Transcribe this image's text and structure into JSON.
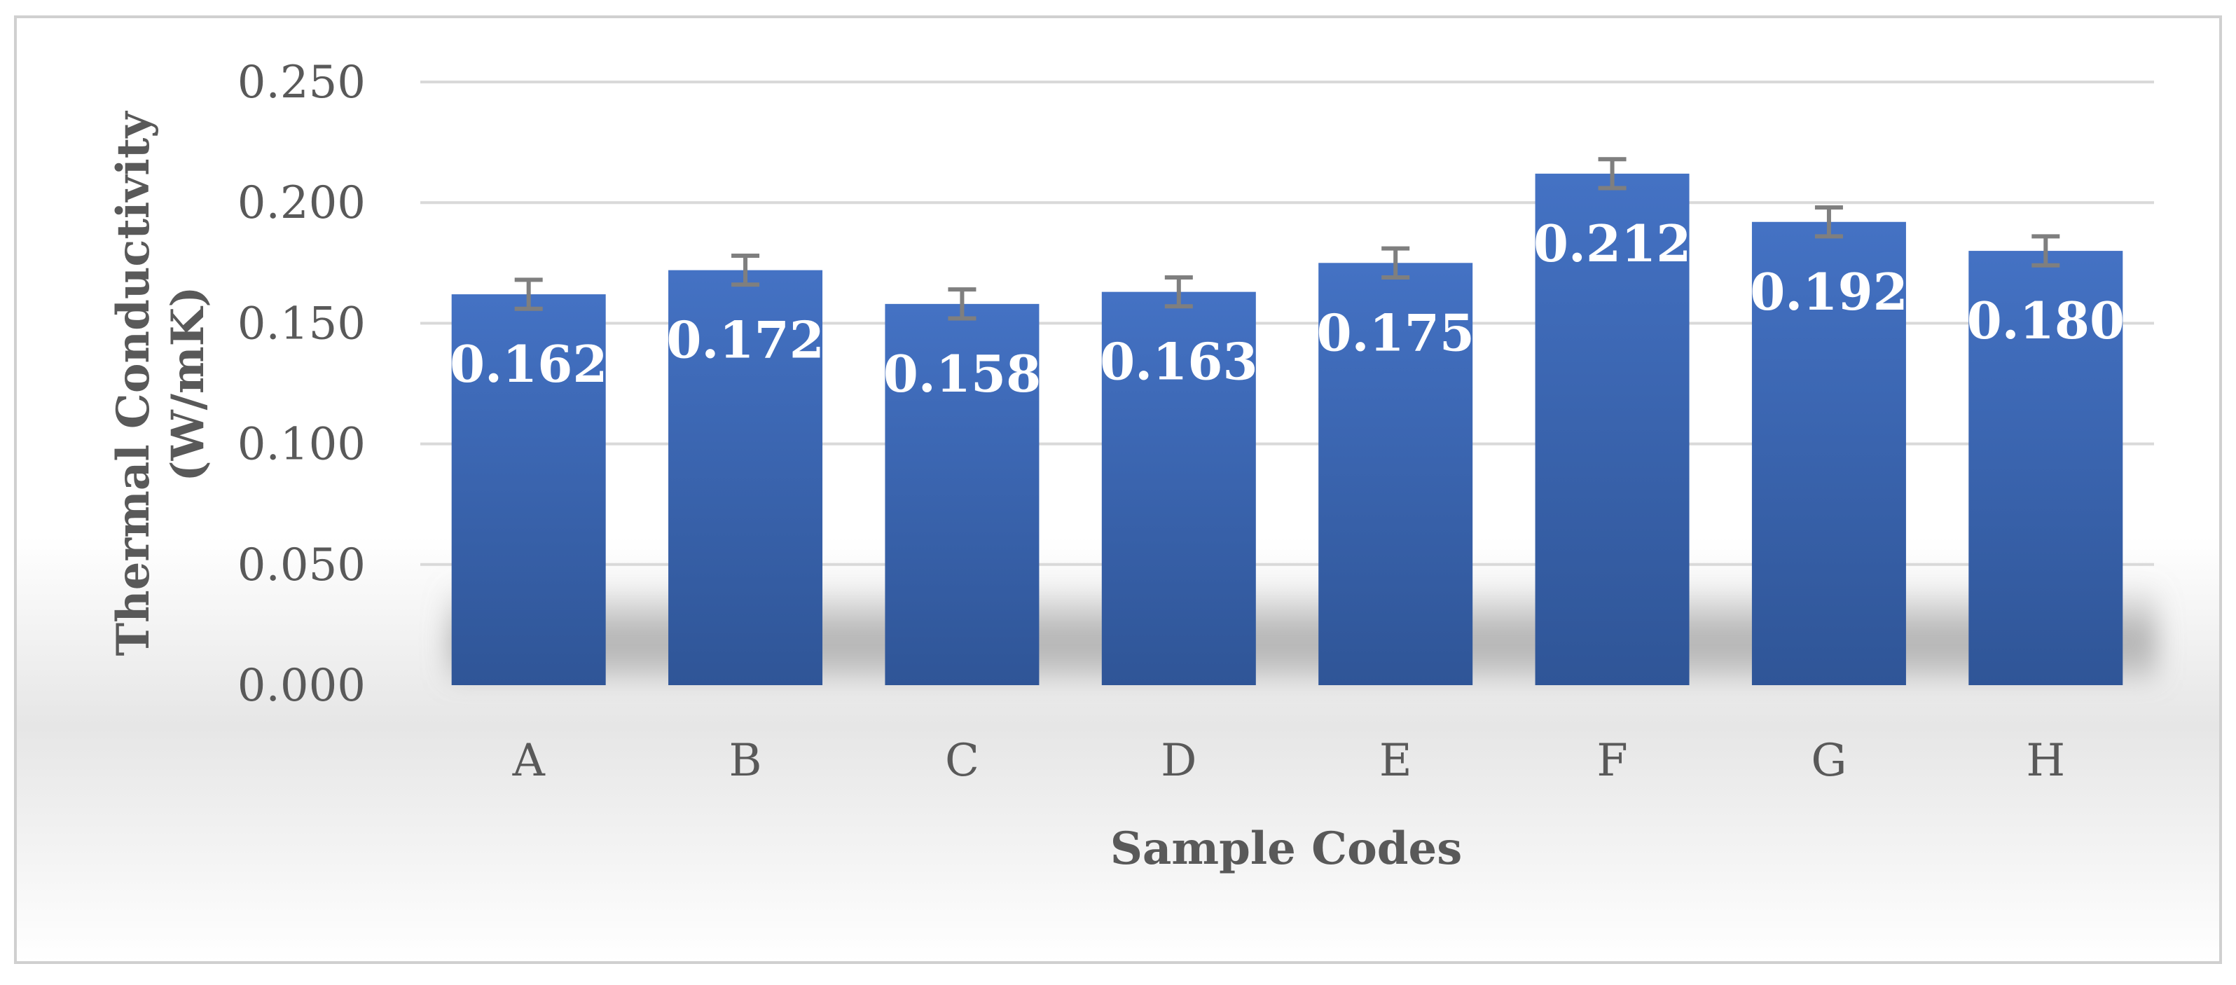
{
  "chart_data": {
    "type": "bar",
    "title": "",
    "categories": [
      "A",
      "B",
      "C",
      "D",
      "E",
      "F",
      "G",
      "H"
    ],
    "values": [
      0.162,
      0.172,
      0.158,
      0.163,
      0.175,
      0.212,
      0.192,
      0.18
    ],
    "data_labels": [
      "0.162",
      "0.172",
      "0.158",
      "0.163",
      "0.175",
      "0.212",
      "0.192",
      "0.180"
    ],
    "error": [
      0.006,
      0.006,
      0.006,
      0.006,
      0.006,
      0.006,
      0.006,
      0.006
    ],
    "xlabel": "Sample Codes",
    "ylabel_line1": "Thermal Conductivity",
    "ylabel_line2": "(W/mK)",
    "ylim": [
      0,
      0.25
    ],
    "yticks": [
      "0.000",
      "0.050",
      "0.100",
      "0.150",
      "0.200",
      "0.250"
    ],
    "ytick_values": [
      0,
      0.05,
      0.1,
      0.15,
      0.2,
      0.25
    ],
    "grid": true,
    "legend": "none",
    "colors": {
      "bar_top": "#4472C4",
      "bar_bottom": "#2F5597",
      "error_bar": "#7F7F7F",
      "grid": "#D9D9D9",
      "text": "#595959",
      "frame": "#D0D0D0"
    }
  }
}
